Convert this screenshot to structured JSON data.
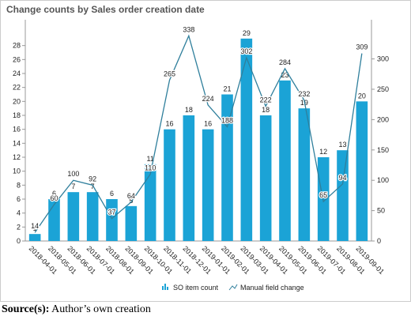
{
  "chart_data": {
    "type": "bar-line",
    "title": "Change counts by Sales order creation date",
    "categories": [
      "2018-04-01",
      "2018-05-01",
      "2018-06-01",
      "2018-07-01",
      "2018-08-01",
      "2018-09-01",
      "2018-10-01",
      "2018-11-01",
      "2018-12-01",
      "2019-01-01",
      "2019-02-01",
      "2019-03-01",
      "2019-04-01",
      "2019-05-01",
      "2019-06-01",
      "2019-07-01",
      "2019-08-01",
      "2019-09-01"
    ],
    "series": [
      {
        "name": "SO item count",
        "type": "bar",
        "color": "#1ba3d6",
        "values": [
          1,
          6,
          7,
          7,
          6,
          5,
          11,
          16,
          18,
          16,
          21,
          29,
          18,
          23,
          19,
          12,
          13,
          20
        ]
      },
      {
        "name": "Manual field change",
        "type": "line",
        "axis": "y2",
        "color": "#2f7f9c",
        "values": [
          14,
          60,
          100,
          92,
          37,
          64,
          110,
          265,
          338,
          224,
          188,
          302,
          222,
          284,
          232,
          65,
          94,
          309
        ]
      }
    ],
    "ylim": [
      0,
      30
    ],
    "yticks": [
      0,
      2,
      4,
      6,
      8,
      10,
      12,
      14,
      16,
      18,
      20,
      22,
      24,
      26,
      28
    ],
    "y2lim": [
      0,
      345
    ],
    "y2ticks": [
      0,
      50,
      100,
      150,
      200,
      250,
      300
    ],
    "caption": {
      "label": "Source(s):",
      "text": "Author’s own creation"
    }
  }
}
